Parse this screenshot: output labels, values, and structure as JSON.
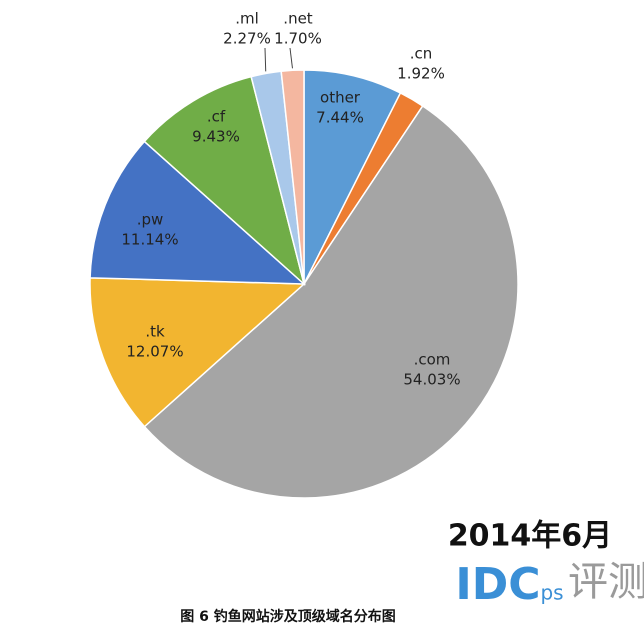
{
  "chart_data": {
    "type": "pie",
    "title": "图 6 钓鱼网站涉及顶级域名分布图",
    "subtitle": "2014年6月",
    "categories": [
      "other",
      ".cn",
      ".com",
      ".tk",
      ".pw",
      ".cf",
      ".ml",
      ".net"
    ],
    "values": [
      7.44,
      1.92,
      54.03,
      12.07,
      11.14,
      9.43,
      2.27,
      1.7
    ],
    "value_labels": [
      "7.44%",
      "1.92%",
      "54.03%",
      "12.07%",
      "11.14%",
      "9.43%",
      "2.27%",
      "1.70%"
    ],
    "colors": [
      "#5b9bd5",
      "#ed7d31",
      "#a5a5a5",
      "#f2b530",
      "#4472c4",
      "#70ad47",
      "#a9c8ea",
      "#f4b7a0"
    ]
  },
  "watermark": {
    "brand": "IDC",
    "suffix": "ps",
    "mark": "评测"
  }
}
